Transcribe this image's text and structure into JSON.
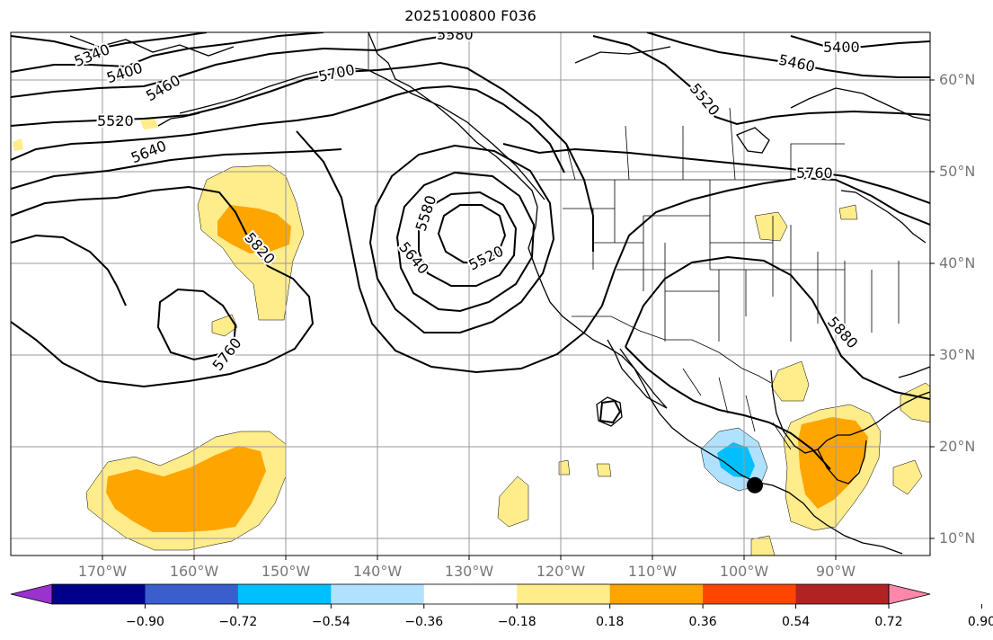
{
  "title": "2025100800 F036",
  "lat_labels": [
    {
      "text": "60°N",
      "lat": 60
    },
    {
      "text": "50°N",
      "lat": 50
    },
    {
      "text": "40°N",
      "lat": 40
    },
    {
      "text": "30°N",
      "lat": 30
    },
    {
      "text": "20°N",
      "lat": 20
    },
    {
      "text": "10°N",
      "lat": 10
    }
  ],
  "lon_labels": [
    {
      "text": "170°W",
      "lon": -170
    },
    {
      "text": "160°W",
      "lon": -160
    },
    {
      "text": "150°W",
      "lon": -150
    },
    {
      "text": "140°W",
      "lon": -140
    },
    {
      "text": "130°W",
      "lon": -130
    },
    {
      "text": "120°W",
      "lon": -120
    },
    {
      "text": "110°W",
      "lon": -110
    },
    {
      "text": "100°W",
      "lon": -100
    },
    {
      "text": "90°W",
      "lon": -90
    }
  ],
  "contour_labels": [
    "5340",
    "5400",
    "5460",
    "5520",
    "5640",
    "5700",
    "5580",
    "5820",
    "5760",
    "5880"
  ],
  "colorbar": {
    "colors": [
      "#9a32cd",
      "#00008b",
      "#3a5fcd",
      "#00bfff",
      "#b0e2ff",
      "#ffffff",
      "#ffec8b",
      "#ffa500",
      "#ff4500",
      "#b22222",
      "#ff88aa"
    ],
    "tick_labels": [
      "−0.90",
      "−0.72",
      "−0.54",
      "−0.36",
      "−0.18",
      "0.18",
      "0.36",
      "0.54",
      "0.72",
      "0.90"
    ]
  },
  "marker": {
    "name": "storm-center",
    "lat": 16,
    "lon": -100
  }
}
